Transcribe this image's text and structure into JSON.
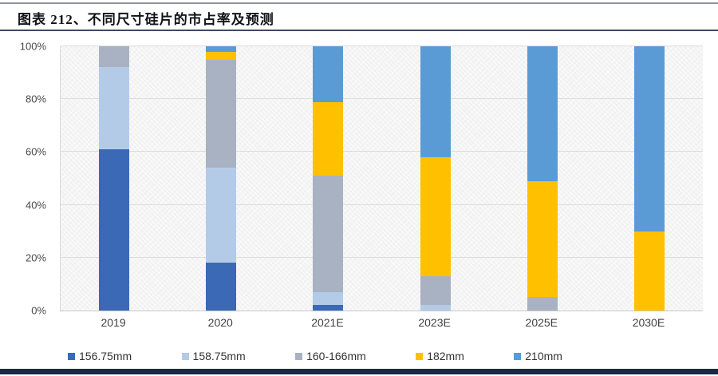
{
  "title": "图表 212、不同尺寸硅片的市占率及预测",
  "chart_data": {
    "type": "bar",
    "stacked": true,
    "title": "图表 212、不同尺寸硅片的市占率及预测",
    "xlabel": "",
    "ylabel": "",
    "ylim": [
      0,
      100
    ],
    "grid": true,
    "legend_position": "bottom",
    "plot_background": "#f1f1f2",
    "categories": [
      "2019",
      "2020",
      "2021E",
      "2023E",
      "2025E",
      "2030E"
    ],
    "y_ticks": [
      {
        "value": 0,
        "label": "0%"
      },
      {
        "value": 20,
        "label": "20%"
      },
      {
        "value": 40,
        "label": "40%"
      },
      {
        "value": 60,
        "label": "60%"
      },
      {
        "value": 80,
        "label": "80%"
      },
      {
        "value": 100,
        "label": "100%"
      }
    ],
    "series": [
      {
        "name": "156.75mm",
        "color": "#3B69B5",
        "values": [
          61,
          18,
          2,
          0,
          0,
          0
        ]
      },
      {
        "name": "158.75mm",
        "color": "#B4CBE8",
        "values": [
          31,
          36,
          5,
          2,
          0,
          0
        ]
      },
      {
        "name": "160-166mm",
        "color": "#A9B2C2",
        "values": [
          8,
          41,
          44,
          11,
          5,
          0
        ]
      },
      {
        "name": "182mm",
        "color": "#FFC000",
        "values": [
          0,
          3,
          28,
          45,
          44,
          30
        ]
      },
      {
        "name": "210mm",
        "color": "#5B9BD5",
        "values": [
          0,
          2,
          21,
          42,
          51,
          70
        ]
      }
    ]
  },
  "accents": {
    "top_rule": "#8f949c",
    "title_rule": "#3c4c68",
    "bottom_rule": "#1c2742"
  }
}
